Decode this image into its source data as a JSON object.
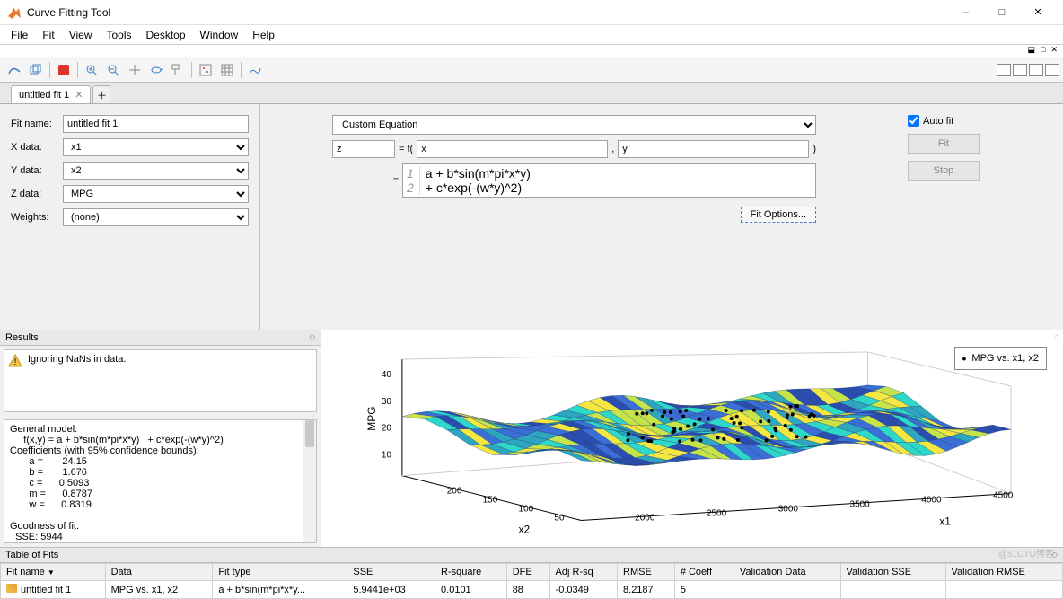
{
  "window": {
    "title": "Curve Fitting Tool",
    "menu": [
      "File",
      "Fit",
      "View",
      "Tools",
      "Desktop",
      "Window",
      "Help"
    ]
  },
  "tabs": {
    "active": "untitled fit 1"
  },
  "form": {
    "fitname_label": "Fit name:",
    "fitname_value": "untitled fit 1",
    "xdata_label": "X data:",
    "xdata_value": "x1",
    "ydata_label": "Y data:",
    "ydata_value": "x2",
    "zdata_label": "Z data:",
    "zdata_value": "MPG",
    "weights_label": "Weights:",
    "weights_value": "(none)"
  },
  "equation": {
    "type_value": "Custom Equation",
    "lhs": "z",
    "fn_prefix": "= f(",
    "var1": "x",
    "comma": ",",
    "var2": "y",
    "close": ")",
    "eq_prefix": "=",
    "line1": "a + b*sin(m*pi*x*y)",
    "line2": "  + c*exp(-(w*y)^2)",
    "fit_options": "Fit Options..."
  },
  "right": {
    "auto_fit": "Auto fit",
    "fit_btn": "Fit",
    "stop_btn": "Stop"
  },
  "results": {
    "title": "Results",
    "warning": "Ignoring NaNs in data.",
    "body": "General model:\n     f(x,y) = a + b*sin(m*pi*x*y)   + c*exp(-(w*y)^2)\nCoefficients (with 95% confidence bounds):\n       a =       24.15\n       b =       1.676\n       c =      0.5093\n       m =      0.8787\n       w =      0.8319\n\nGoodness of fit:\n  SSE: 5944"
  },
  "plot": {
    "legend_label": "MPG vs. x1, x2",
    "zlabel": "MPG",
    "xlabel": "x1",
    "ylabel": "x2",
    "zticks": [
      "10",
      "20",
      "30",
      "40"
    ],
    "xticks": [
      "2000",
      "2500",
      "3000",
      "3500",
      "4000",
      "4500"
    ],
    "yticks": [
      "50",
      "100",
      "150",
      "200"
    ],
    "surface_colors": [
      "#2b4db0",
      "#3c6fd6",
      "#2fa6bf",
      "#2dd8c9",
      "#c6e34a",
      "#f5e742"
    ],
    "scatter_color": "#000000",
    "zlim": [
      5,
      45
    ],
    "xlim": [
      1900,
      4700
    ],
    "ylim": [
      40,
      230
    ]
  },
  "tof": {
    "title": "Table of Fits",
    "headers": [
      "Fit name",
      "Data",
      "Fit type",
      "SSE",
      "R-square",
      "DFE",
      "Adj R-sq",
      "RMSE",
      "# Coeff",
      "Validation Data",
      "Validation SSE",
      "Validation RMSE"
    ],
    "row": [
      "untitled fit 1",
      "MPG vs. x1, x2",
      "a + b*sin(m*pi*x*y...",
      "5.9441e+03",
      "0.0101",
      "88",
      "-0.0349",
      "8.2187",
      "5",
      "",
      "",
      ""
    ]
  },
  "watermark": "@51CTO博客"
}
